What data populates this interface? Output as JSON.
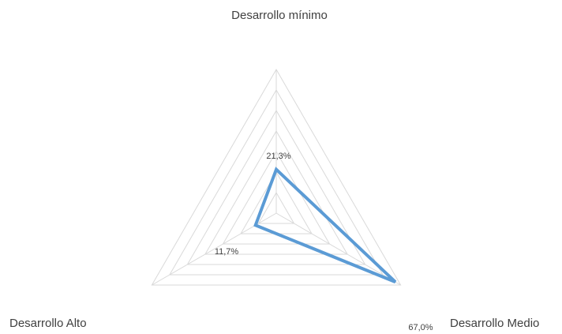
{
  "chart_data": {
    "type": "radar",
    "title": "",
    "categories": [
      "Desarrollo mínimo",
      "Desarrollo Medio",
      "Desarrollo Alto"
    ],
    "series": [
      {
        "values": [
          21.3,
          67.0,
          11.7
        ],
        "labels": [
          "21,3%",
          "67,0%",
          "11,7%"
        ],
        "color": "#5b9bd5"
      }
    ],
    "rmax": 70,
    "grid_rings": 7,
    "grid": true,
    "legend": "none",
    "grid_color": "#d9d9d9"
  }
}
